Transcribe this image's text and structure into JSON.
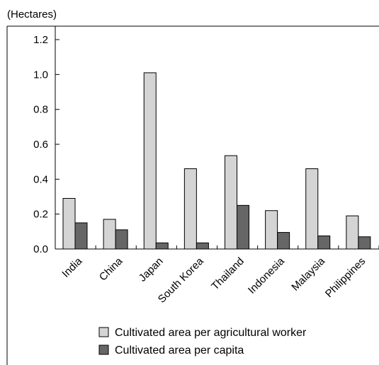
{
  "chart_data": {
    "type": "bar",
    "unit_label": "(Hectares)",
    "title": "",
    "xlabel": "",
    "ylabel": "",
    "categories": [
      "India",
      "China",
      "Japan",
      "South Korea",
      "Thailand",
      "Indonesia",
      "Malaysia",
      "Philippines"
    ],
    "series": [
      {
        "name": "Cultivated area per agricultural worker",
        "color": "#d4d4d4",
        "values": [
          0.29,
          0.17,
          1.01,
          0.46,
          0.535,
          0.22,
          0.46,
          0.19
        ]
      },
      {
        "name": "Cultivated area per capita",
        "color": "#666666",
        "values": [
          0.15,
          0.11,
          0.035,
          0.035,
          0.25,
          0.095,
          0.075,
          0.07
        ]
      }
    ],
    "yticks": [
      "0.0",
      "0.2",
      "0.4",
      "0.6",
      "0.8",
      "1.0",
      "1.2"
    ],
    "ylim": [
      0,
      1.2
    ],
    "grid": false,
    "legend_position": "bottom"
  }
}
